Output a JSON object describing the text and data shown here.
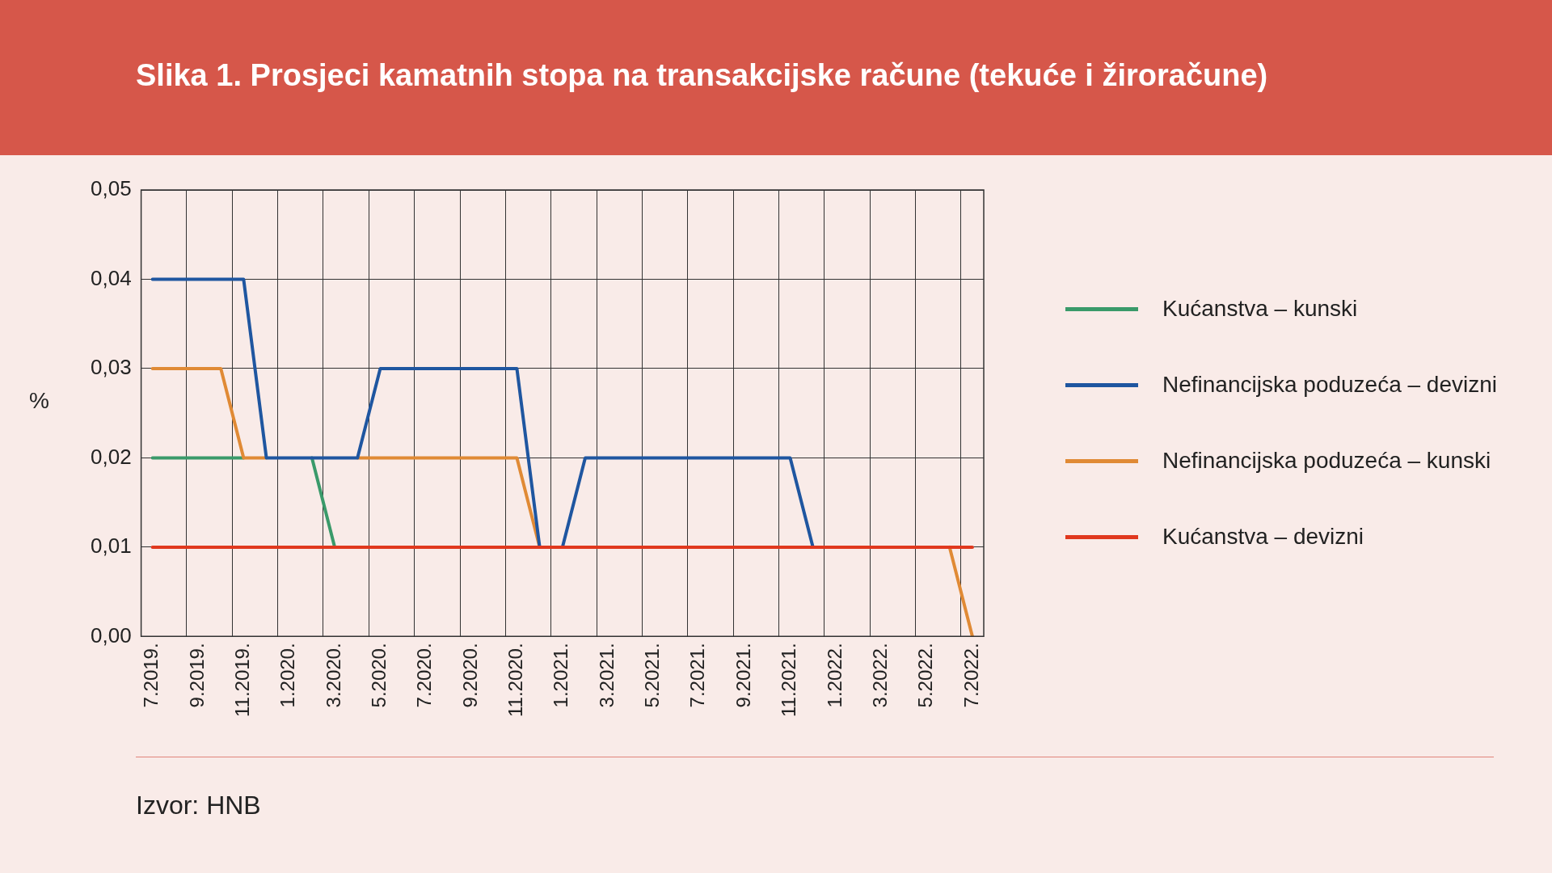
{
  "chart_data": {
    "type": "line",
    "title": "Slika 1. Prosjeci kamatnih stopa na transakcijske račune (tekuće i žiroračune)",
    "ylabel": "%",
    "categories": [
      "7.2019.",
      null,
      "9.2019.",
      null,
      "11.2019.",
      null,
      "1.2020.",
      null,
      "3.2020.",
      null,
      "5.2020.",
      null,
      "7.2020.",
      null,
      "9.2020.",
      null,
      "11.2020.",
      null,
      "1.2021.",
      null,
      "3.2021.",
      null,
      "5.2021.",
      null,
      "7.2021.",
      null,
      "9.2021.",
      null,
      "11.2021.",
      null,
      "1.2022.",
      null,
      "3.2022.",
      null,
      "5.2022.",
      null,
      "7.2022."
    ],
    "series": [
      {
        "name": "Kućanstva – kunski",
        "color": "#3a9a6a",
        "values": [
          0.02,
          0.02,
          0.02,
          0.02,
          0.02,
          null,
          null,
          0.02,
          0.01,
          null,
          null,
          null,
          null,
          null,
          null,
          null,
          null,
          null,
          null,
          null,
          null,
          null,
          null,
          null,
          null,
          null,
          null,
          null,
          null,
          null,
          null,
          null,
          null,
          null,
          null,
          null,
          null
        ]
      },
      {
        "name": "Nefinancijska poduzeća – devizni",
        "color": "#1f56a0",
        "values": [
          0.04,
          0.04,
          0.04,
          0.04,
          0.04,
          0.02,
          0.02,
          0.02,
          0.02,
          0.02,
          0.03,
          0.03,
          0.03,
          0.03,
          0.03,
          0.03,
          0.03,
          0.01,
          0.01,
          0.02,
          0.02,
          0.02,
          0.02,
          0.02,
          0.02,
          0.02,
          0.02,
          0.02,
          0.02,
          0.01,
          null,
          null,
          null,
          null,
          null,
          null,
          null
        ]
      },
      {
        "name": "Nefinancijska poduzeća – kunski",
        "color": "#e08a35",
        "values": [
          0.03,
          0.03,
          0.03,
          0.03,
          0.02,
          0.02,
          null,
          null,
          null,
          0.02,
          0.02,
          0.02,
          0.02,
          0.02,
          0.02,
          0.02,
          0.02,
          0.01,
          null,
          null,
          null,
          null,
          null,
          null,
          null,
          null,
          null,
          null,
          null,
          null,
          null,
          null,
          null,
          null,
          null,
          0.01,
          0
        ]
      },
      {
        "name": "Kućanstva – devizni",
        "color": "#e0381e",
        "values": [
          0.01,
          0.01,
          0.01,
          0.01,
          0.01,
          0.01,
          0.01,
          0.01,
          0.01,
          0.01,
          0.01,
          0.01,
          0.01,
          0.01,
          0.01,
          0.01,
          0.01,
          0.01,
          0.01,
          0.01,
          0.01,
          0.01,
          0.01,
          0.01,
          0.01,
          0.01,
          0.01,
          0.01,
          0.01,
          0.01,
          0.01,
          0.01,
          0.01,
          0.01,
          0.01,
          0.01,
          0.01
        ]
      }
    ],
    "ylim": [
      0,
      0.05
    ],
    "yticks": [
      {
        "value": 0,
        "label": "0,00"
      },
      {
        "value": 0.01,
        "label": "0,01"
      },
      {
        "value": 0.02,
        "label": "0,02"
      },
      {
        "value": 0.03,
        "label": "0,03"
      },
      {
        "value": 0.04,
        "label": "0,04"
      },
      {
        "value": 0.05,
        "label": "0,05"
      }
    ],
    "grid": true,
    "legend": "right",
    "marker": "none",
    "annotations": [
      "Izvor: HNB"
    ]
  }
}
